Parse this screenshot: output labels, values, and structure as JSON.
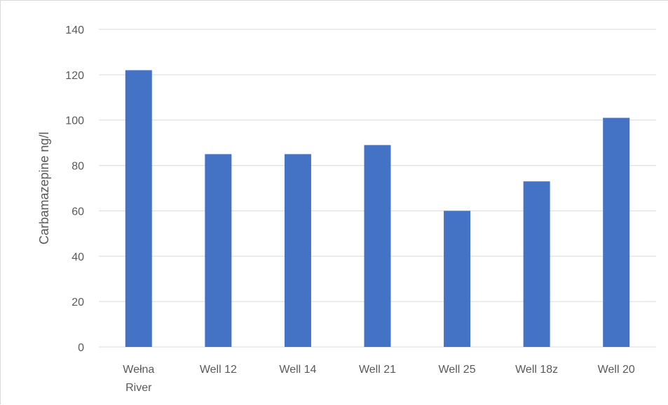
{
  "chart_data": {
    "type": "bar",
    "title": "",
    "xlabel": "",
    "ylabel": "Carbamazepine ng/l",
    "categories": [
      "Wełna River",
      "Well 12",
      "Well 14",
      "Well 21",
      "Well 25",
      "Well 18z",
      "Well 20"
    ],
    "category_lines": [
      [
        "Wełna",
        "River"
      ],
      [
        "Well 12"
      ],
      [
        "Well 14"
      ],
      [
        "Well 21"
      ],
      [
        "Well 25"
      ],
      [
        "Well 18z"
      ],
      [
        "Well 20"
      ]
    ],
    "values": [
      122,
      85,
      85,
      89,
      60,
      73,
      101
    ],
    "ylim": [
      0,
      140
    ],
    "yticks": [
      0,
      20,
      40,
      60,
      80,
      100,
      120,
      140
    ],
    "grid": true,
    "legend": "none",
    "bar_color": "#4472c4",
    "grid_color": "#d9d9d9"
  }
}
